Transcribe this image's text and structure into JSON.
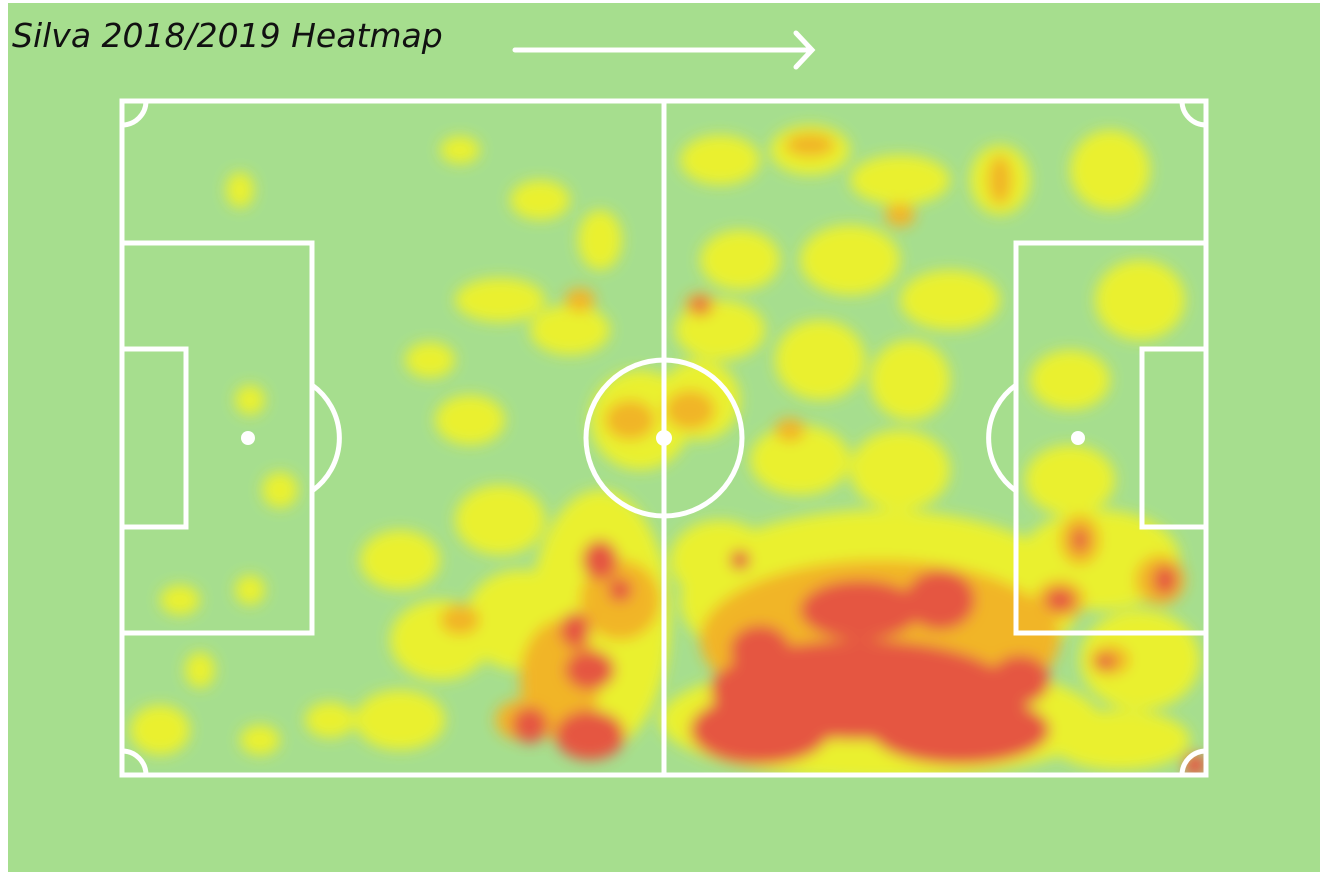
{
  "header": {
    "title": "Silva 2018/2019 Heatmap"
  }
}
